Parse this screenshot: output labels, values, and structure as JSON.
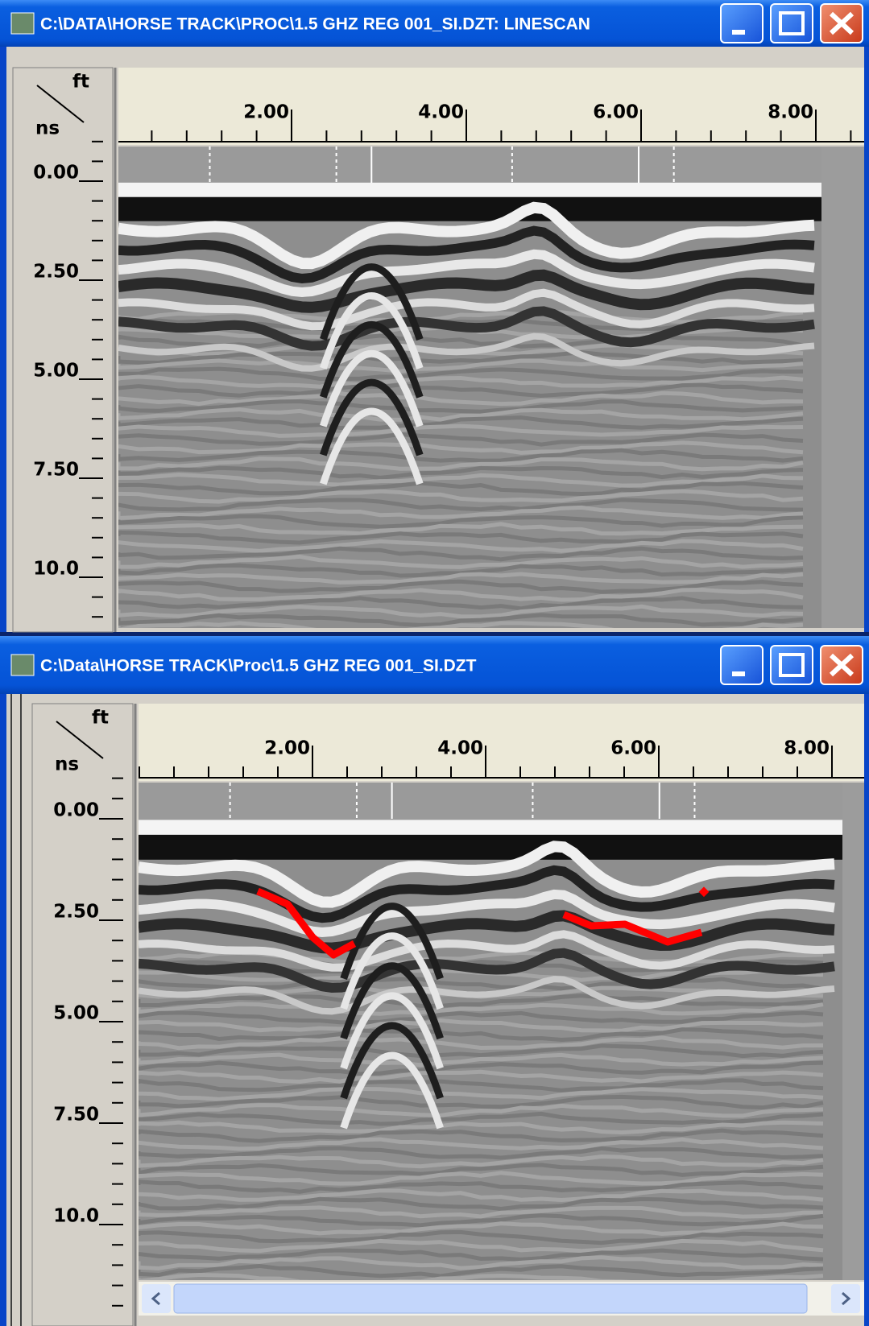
{
  "windows": [
    {
      "title": "C:\\DATA\\HORSE TRACK\\PROC\\1.5 GHZ REG 001_SI.DZT:  LINESCAN",
      "x_unit": "ft",
      "y_unit": "ns",
      "x_ticks": [
        "2.00",
        "4.00",
        "6.00",
        "8.00"
      ],
      "y_ticks": [
        "0.00",
        "2.50",
        "5.00",
        "7.50",
        "10.0"
      ]
    },
    {
      "title": "C:\\Data\\HORSE TRACK\\Proc\\1.5 GHZ REG 001_SI.DZT",
      "x_unit": "ft",
      "y_unit": "ns",
      "x_ticks": [
        "2.00",
        "4.00",
        "6.00",
        "8.00"
      ],
      "y_ticks": [
        "0.00",
        "2.50",
        "5.00",
        "7.50",
        "10.0"
      ]
    }
  ]
}
